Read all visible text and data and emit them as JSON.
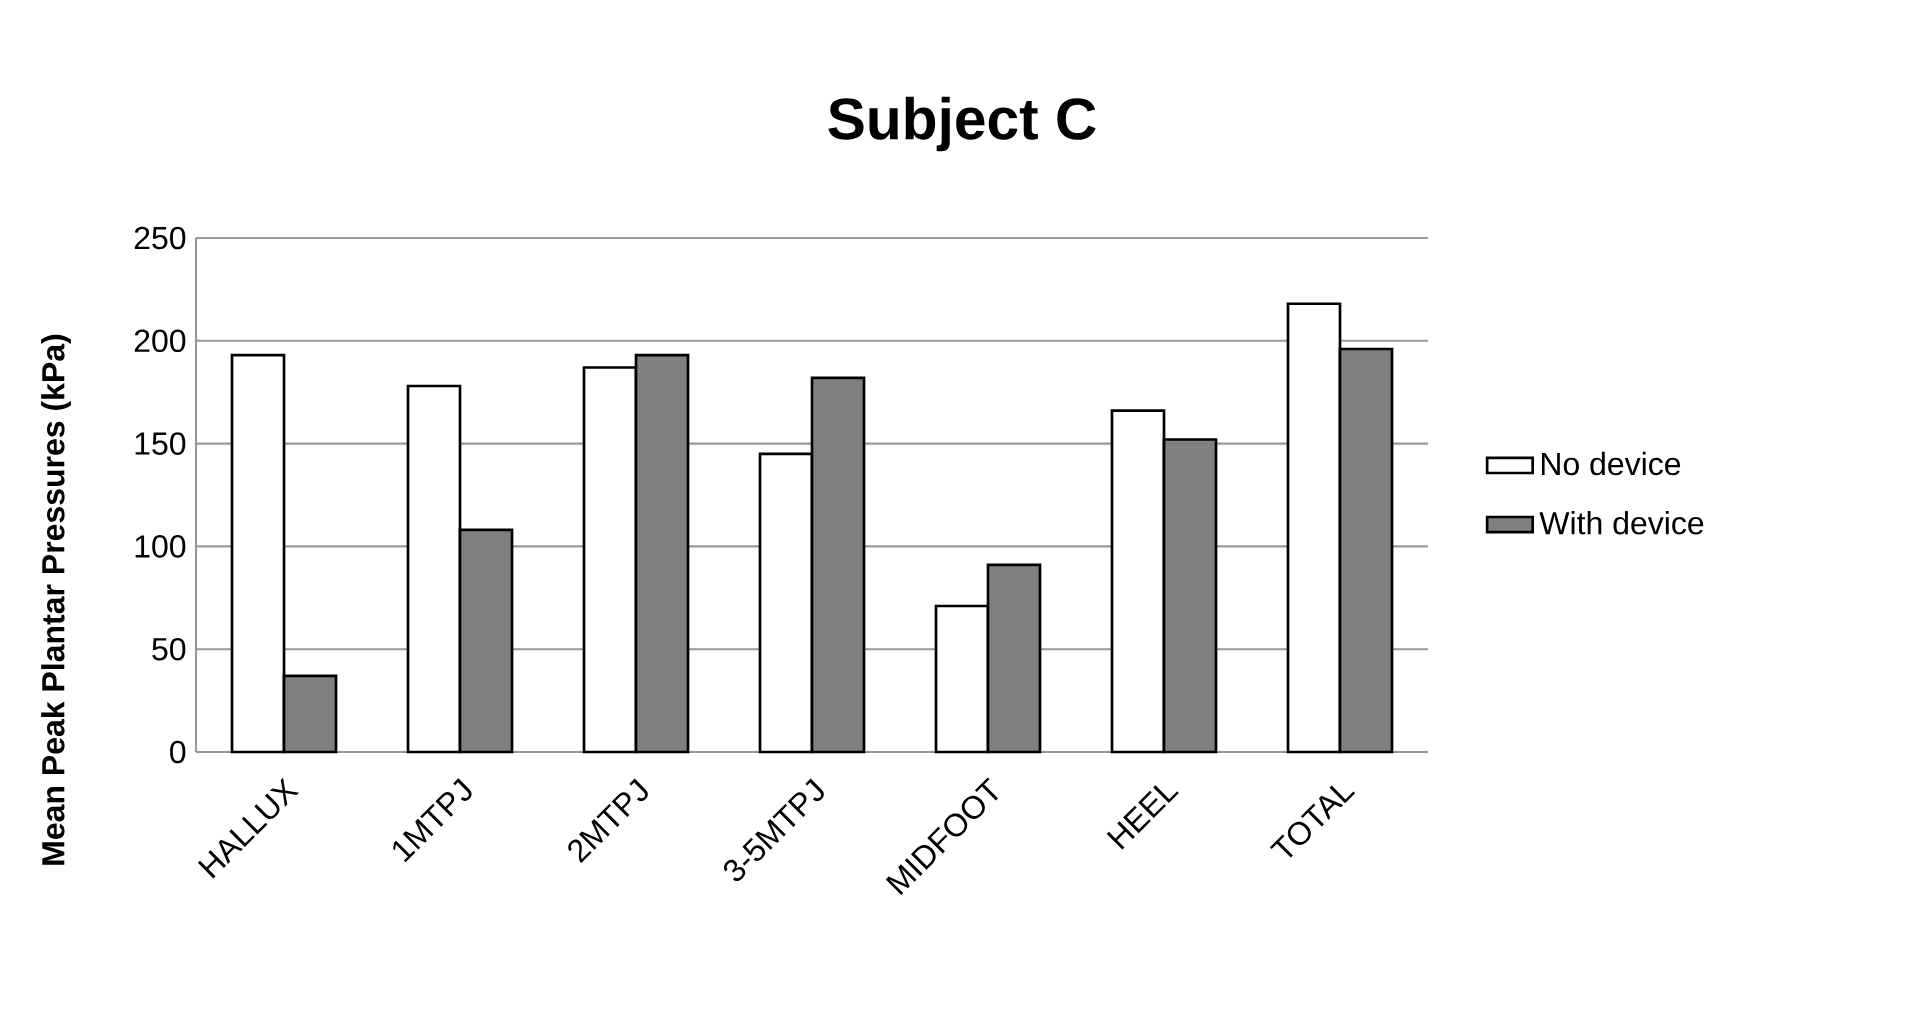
{
  "chart_data": {
    "type": "bar",
    "title": "Subject C",
    "ylabel": "Mean Peak Plantar Pressures (kPa)",
    "categories": [
      "HALLUX",
      "1MTPJ",
      "2MTPJ",
      "3-5MTPJ",
      "MIDFOOT",
      "HEEL",
      "TOTAL"
    ],
    "series": [
      {
        "name": "No device",
        "color": "#ffffff",
        "values": [
          193,
          178,
          187,
          145,
          71,
          166,
          218
        ]
      },
      {
        "name": "With device",
        "color": "#808080",
        "values": [
          37,
          108,
          193,
          182,
          91,
          152,
          196
        ]
      }
    ],
    "ylim": [
      0,
      250
    ],
    "yticks": [
      0,
      50,
      100,
      150,
      200,
      250
    ],
    "grid": "y",
    "legend": "right"
  }
}
